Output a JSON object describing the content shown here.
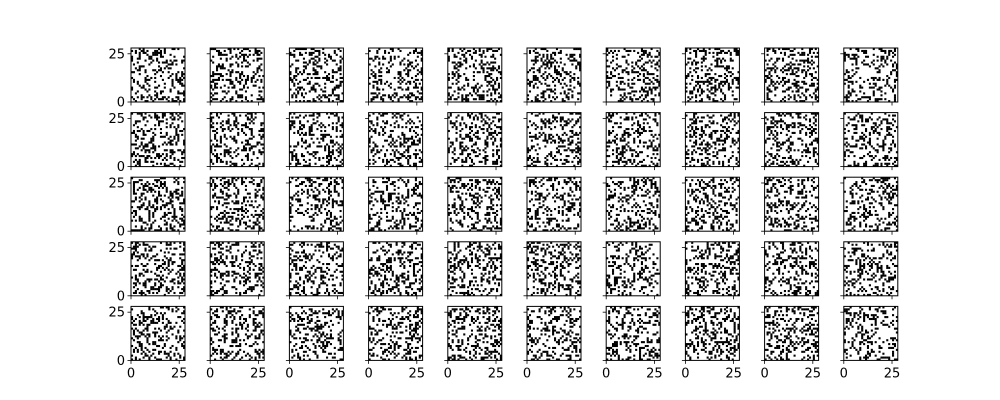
{
  "chart_data": {
    "type": "heatmap",
    "layout": "grid",
    "rows": 5,
    "cols": 10,
    "image_size": [
      28,
      28
    ],
    "colormap": [
      "#ffffff",
      "#000000"
    ],
    "pixel_density": 0.28,
    "xlim": [
      0,
      28
    ],
    "ylim": [
      0,
      28
    ],
    "x_ticks": [
      0,
      25
    ],
    "y_ticks": [
      0,
      25
    ],
    "x_tick_labels": [
      "0",
      "25"
    ],
    "y_tick_labels": [
      "0",
      "25"
    ],
    "x_ticks_shown_on": "bottom-row",
    "y_ticks_shown_on": "left-column",
    "title": "",
    "xlabel": "",
    "ylabel": "",
    "grid": false,
    "legend": "none"
  }
}
